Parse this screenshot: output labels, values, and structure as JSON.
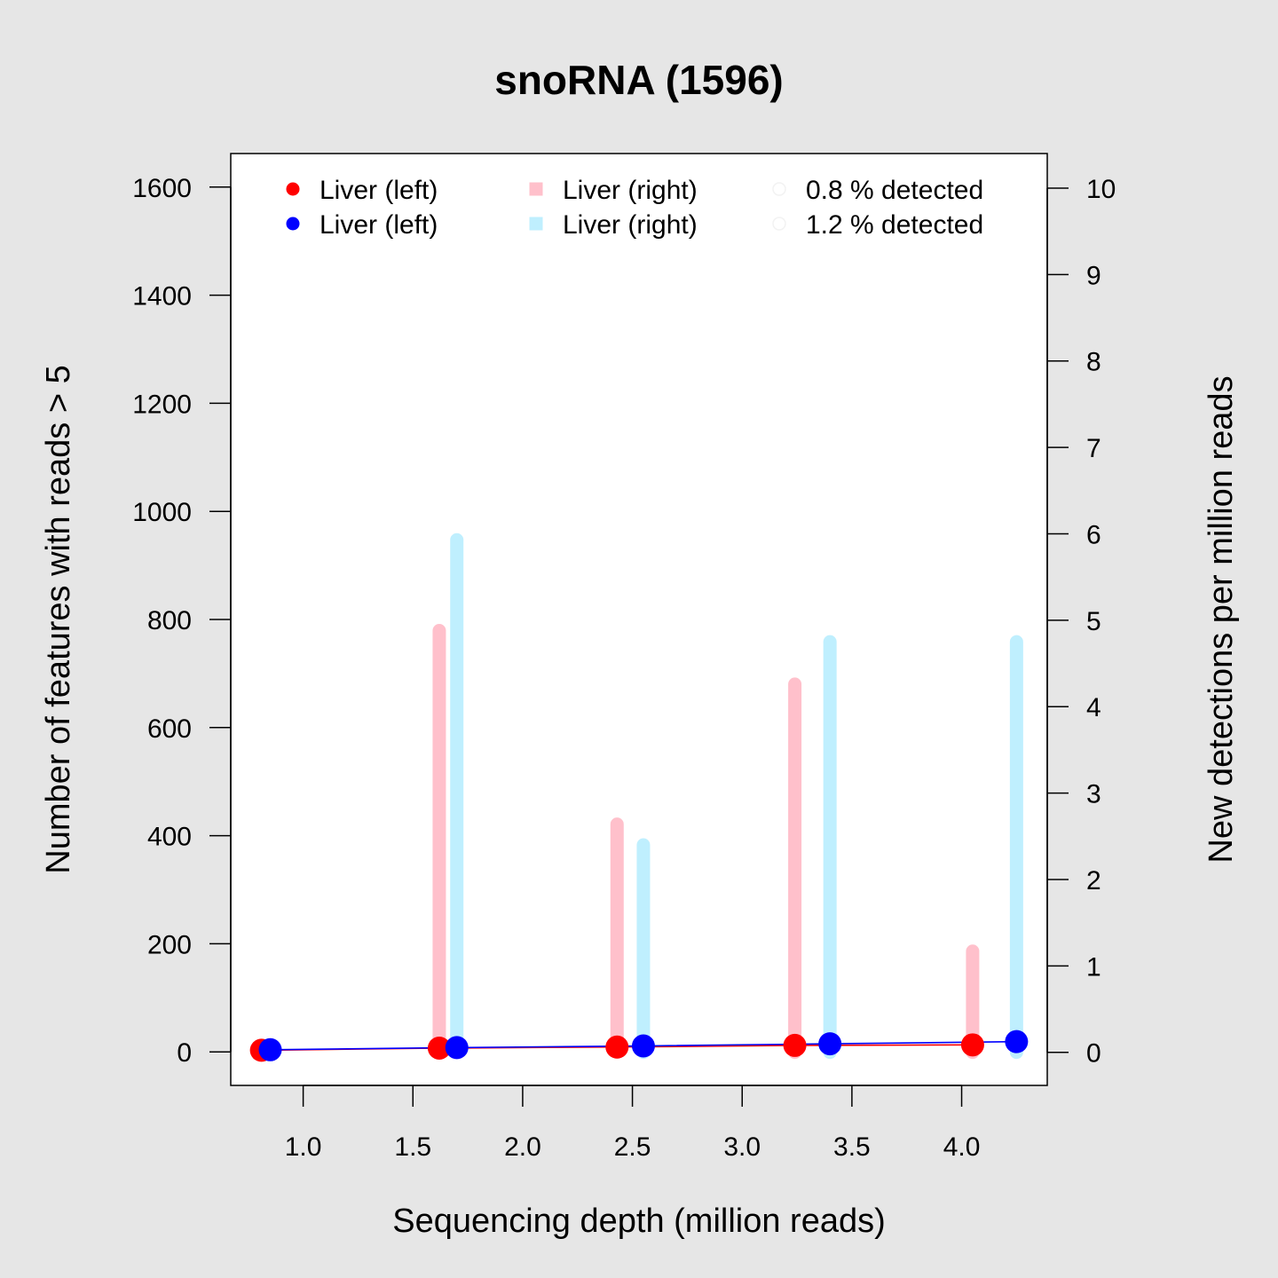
{
  "chart_data": {
    "type": "line",
    "title": "snoRNA (1596)",
    "xlabel": "Sequencing depth (million reads)",
    "ylabel": "Number of features with reads > 5",
    "y2label": "New detections per million reads",
    "xlim": [
      0.67,
      4.39
    ],
    "ylim": [
      -62,
      1662
    ],
    "y2lim": [
      -0.383,
      10.4
    ],
    "x_ticks": [
      "1.0",
      "1.5",
      "2.0",
      "2.5",
      "3.0",
      "3.5",
      "4.0"
    ],
    "y_ticks": [
      "0",
      "200",
      "400",
      "600",
      "800",
      "1000",
      "1200",
      "1400",
      "1600"
    ],
    "y2_ticks": [
      "0",
      "1",
      "2",
      "3",
      "4",
      "5",
      "6",
      "7",
      "8",
      "9",
      "10"
    ],
    "grid": false,
    "legend_position": "top",
    "colors": {
      "line_series_1": "#ff0000",
      "line_series_2": "#0000ff",
      "bar_series_1": "#ffc0cb",
      "bar_series_2": "#bfeffe",
      "detected_marker": "#f2f2f2"
    },
    "legend": [
      {
        "label": "Liver (left)",
        "marker": "dot",
        "color": "#ff0000"
      },
      {
        "label": "Liver (left)",
        "marker": "dot",
        "color": "#0000ff"
      },
      {
        "label": "Liver (right)",
        "marker": "square",
        "color": "#ffc0cb"
      },
      {
        "label": "Liver (right)",
        "marker": "square",
        "color": "#bfeffe"
      },
      {
        "label": "0.8 % detected",
        "marker": "open-circle",
        "color": "#f2f2f2"
      },
      {
        "label": "1.2 % detected",
        "marker": "open-circle",
        "color": "#f2f2f2"
      }
    ],
    "series": [
      {
        "axis": "left",
        "kind": "line",
        "color": "#ff0000",
        "x": [
          0.81,
          1.62,
          2.43,
          3.24,
          4.05
        ],
        "y": [
          3,
          7,
          9,
          12,
          13
        ]
      },
      {
        "axis": "left",
        "kind": "line",
        "color": "#0000ff",
        "x": [
          0.85,
          1.7,
          2.55,
          3.4,
          4.25
        ],
        "y": [
          4,
          8,
          11,
          15,
          19
        ]
      },
      {
        "axis": "right",
        "kind": "bar",
        "color": "#ffc0cb",
        "x": [
          1.62,
          2.43,
          3.24,
          4.05
        ],
        "y": [
          4.88,
          2.64,
          4.26,
          1.17
        ]
      },
      {
        "axis": "right",
        "kind": "bar",
        "color": "#bfeffe",
        "x": [
          1.7,
          2.55,
          3.4,
          4.25
        ],
        "y": [
          5.93,
          2.4,
          4.75,
          4.75
        ]
      }
    ]
  }
}
